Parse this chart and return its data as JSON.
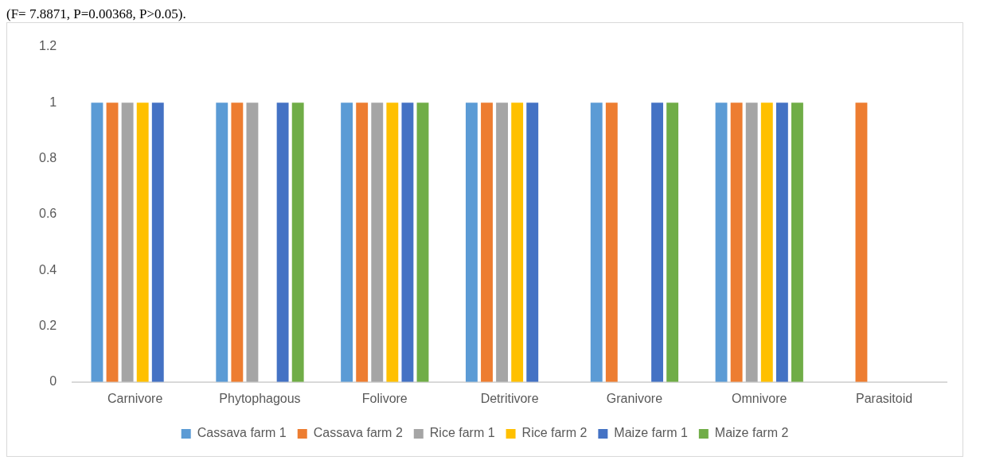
{
  "chart_data": {
    "type": "bar",
    "annotations": [
      "(F= 7.8871, P=0.00368, P>0.05)."
    ],
    "categories": [
      "Carnivore",
      "Phytophagous",
      "Folivore",
      "Detritivore",
      "Granivore",
      "Omnivore",
      "Parasitoid"
    ],
    "series": [
      {
        "name": "Cassava farm 1",
        "color": "#5b9bd5",
        "values": [
          1,
          1,
          1,
          1,
          1,
          1,
          0
        ]
      },
      {
        "name": "Cassava farm 2",
        "color": "#ed7d31",
        "values": [
          1,
          1,
          1,
          1,
          1,
          1,
          1
        ]
      },
      {
        "name": "Rice farm 1",
        "color": "#a5a5a5",
        "values": [
          1,
          1,
          1,
          1,
          0,
          1,
          0
        ]
      },
      {
        "name": "Rice farm 2",
        "color": "#ffc000",
        "values": [
          1,
          0,
          1,
          1,
          0,
          1,
          0
        ]
      },
      {
        "name": "Maize farm 1",
        "color": "#4472c4",
        "values": [
          1,
          1,
          1,
          1,
          1,
          1,
          0
        ]
      },
      {
        "name": "Maize farm 2",
        "color": "#70ad47",
        "values": [
          0,
          1,
          1,
          0,
          1,
          1,
          0
        ]
      }
    ],
    "ylim": [
      0,
      1.2
    ],
    "yticks": [
      0,
      0.2,
      0.4,
      0.6,
      0.8,
      1,
      1.2
    ],
    "grid": false,
    "legend": "bottom"
  }
}
